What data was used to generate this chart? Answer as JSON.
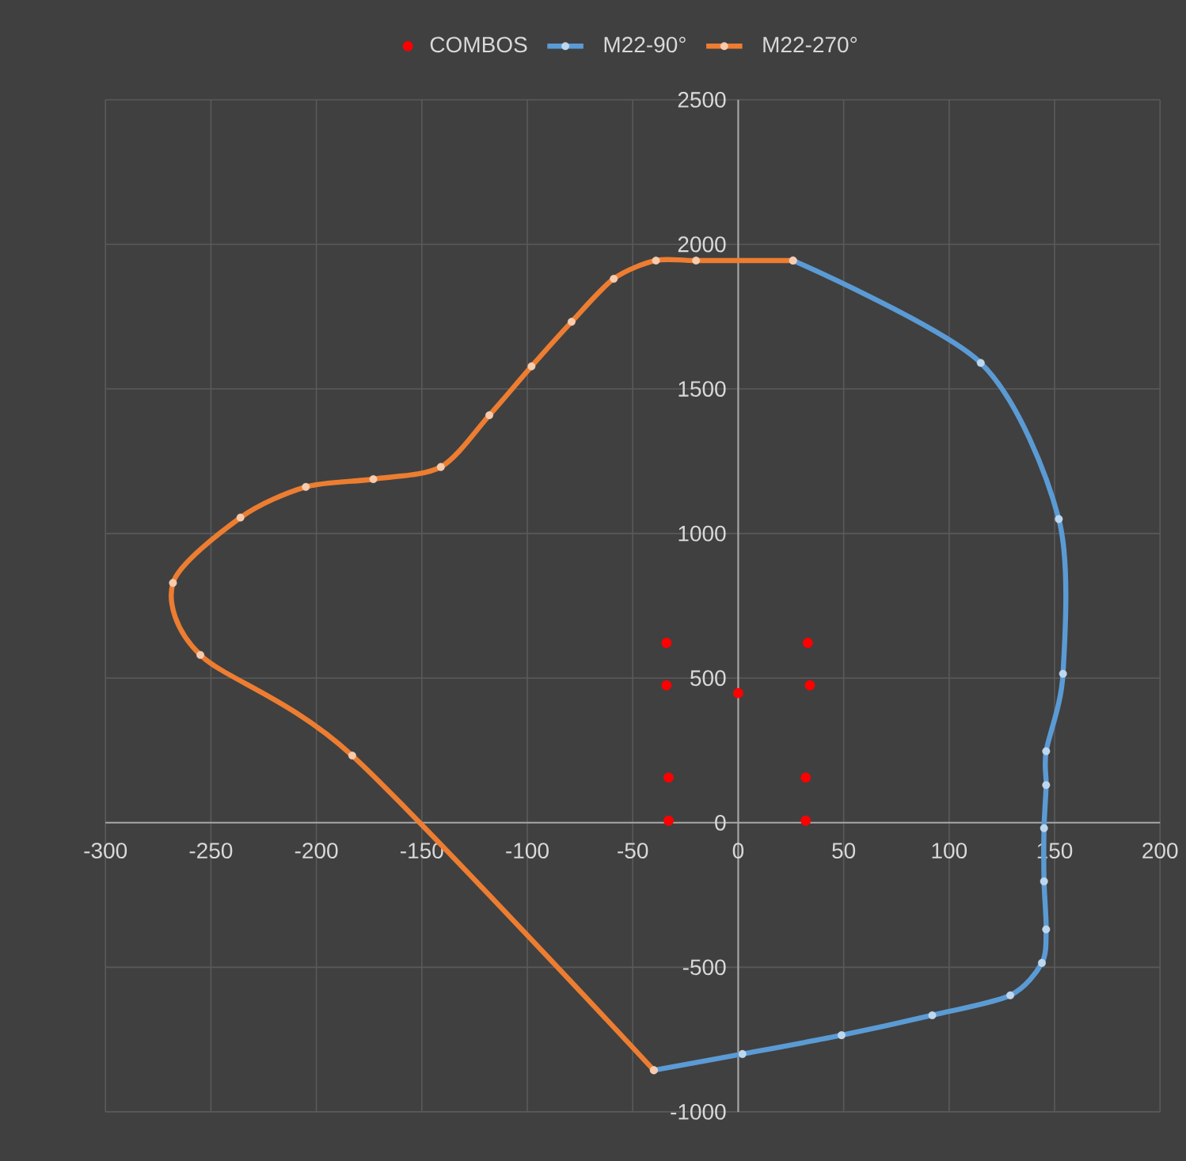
{
  "chart_data": {
    "type": "line",
    "xlim": [
      -300,
      200
    ],
    "ylim": [
      -1000,
      2500
    ],
    "xticks": [
      -300,
      -250,
      -200,
      -150,
      -100,
      -50,
      0,
      50,
      100,
      150,
      200
    ],
    "yticks": [
      -1000,
      -500,
      0,
      500,
      1000,
      1500,
      2000,
      2500
    ],
    "grid": true,
    "legend": "top",
    "marker": "circle",
    "line_style": "solid",
    "series": [
      {
        "name": "COMBOS",
        "type": "scatter",
        "color": "#ff0000",
        "x": [
          -34,
          -34,
          -33,
          -33,
          0,
          33,
          34,
          32,
          32
        ],
        "values": [
          622,
          475,
          156,
          7,
          448,
          622,
          475,
          156,
          7
        ]
      },
      {
        "name": "M22-90°",
        "color": "#5b9bd5",
        "x": [
          26,
          115,
          152,
          154,
          146,
          146,
          145,
          145,
          146,
          144,
          129,
          92,
          49,
          2,
          -40
        ],
        "values": [
          1944,
          1590,
          1050,
          515,
          247,
          130,
          -19,
          -203,
          -369,
          -485,
          -597,
          -666,
          -735,
          -800,
          -856
        ]
      },
      {
        "name": "M22-270°",
        "color": "#ed7d31",
        "x": [
          -40,
          -183,
          -255,
          -268,
          -236,
          -205,
          -173,
          -141,
          -118,
          -98,
          -79,
          -59,
          -39,
          -20,
          26
        ],
        "values": [
          -856,
          232,
          580,
          829,
          1055,
          1161,
          1188,
          1230,
          1409,
          1578,
          1732,
          1881,
          1944,
          1944,
          1944
        ]
      }
    ]
  }
}
